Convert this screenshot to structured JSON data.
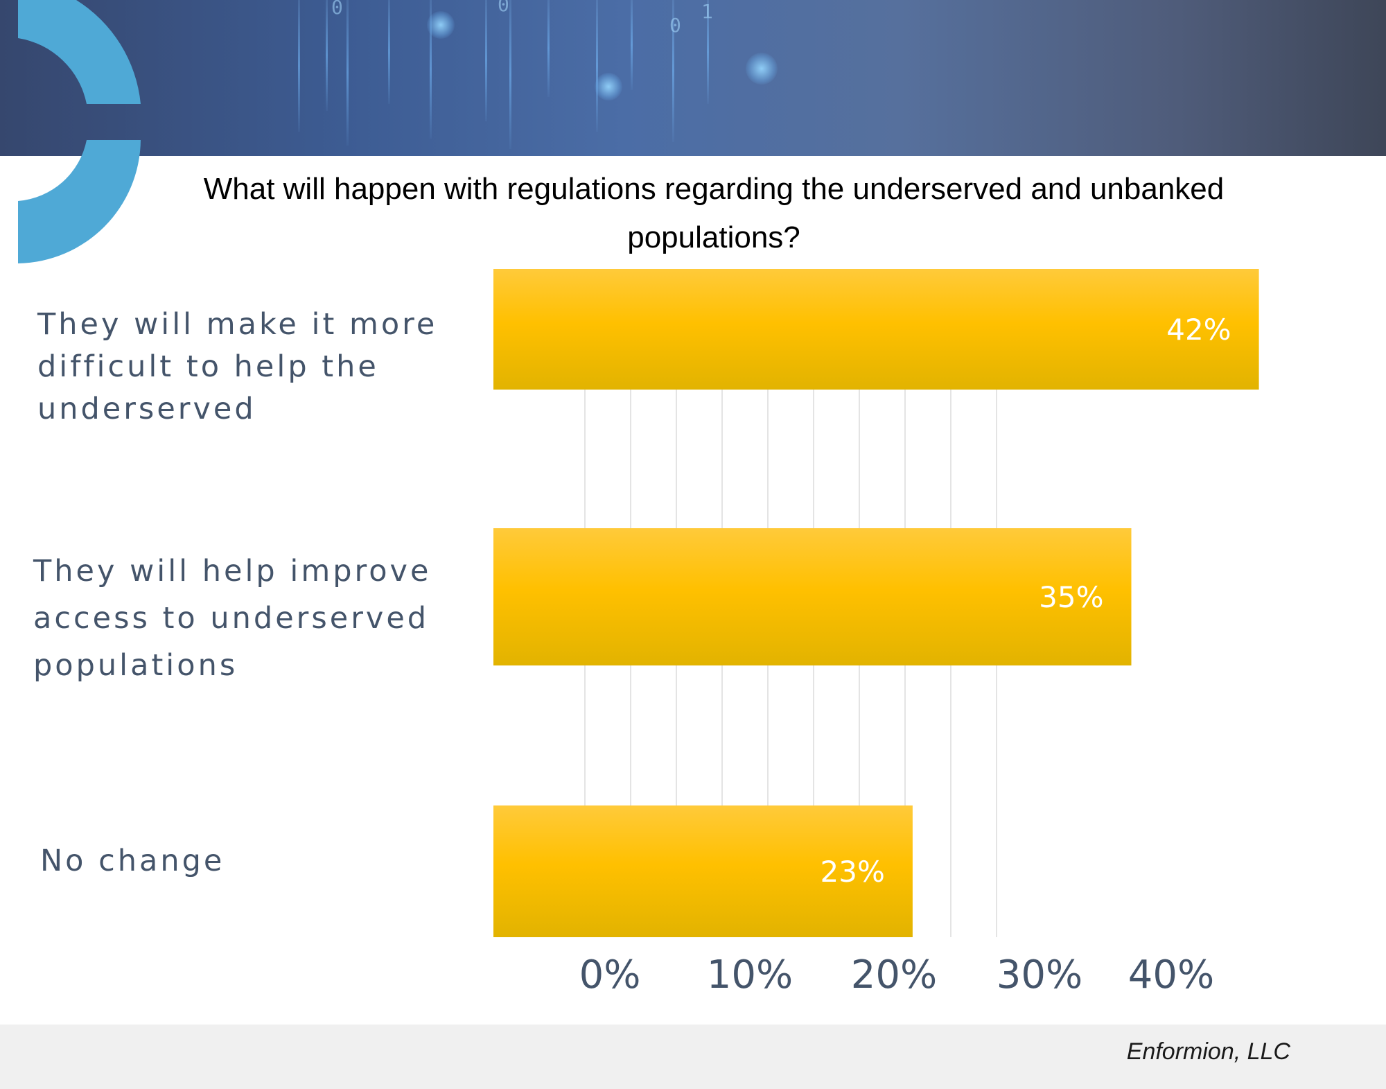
{
  "chart_data": {
    "type": "bar",
    "orientation": "horizontal",
    "title": "What will happen with regulations regarding the underserved and unbanked populations?",
    "categories": [
      "They will make it more difficult to help the underserved",
      "They will help improve access to underserved populations",
      "No change"
    ],
    "category_lines": [
      [
        "They will make it more",
        "difficult to help the",
        "underserved"
      ],
      [
        "They will help improve",
        "access to underserved",
        "populations"
      ],
      [
        "No change"
      ]
    ],
    "values": [
      42,
      35,
      23
    ],
    "data_labels": [
      "42%",
      "35%",
      "23%"
    ],
    "x_ticks": [
      "0%",
      "10%",
      "20%",
      "30%",
      "40%"
    ],
    "xlim": [
      0,
      45
    ],
    "xlabel": "",
    "ylabel": "",
    "grid": true,
    "legend": "none",
    "bar_color": "#ffc000",
    "label_color": "#44546a"
  },
  "footer": {
    "source": "Enformion, LLC"
  },
  "banner": {
    "digits": [
      "0",
      "0",
      "0",
      "1"
    ]
  }
}
